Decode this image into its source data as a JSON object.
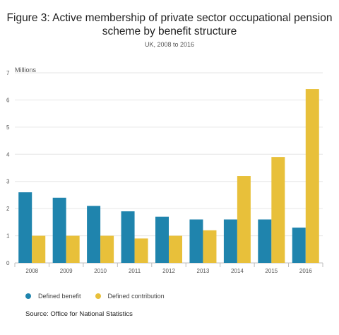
{
  "title_lines": [
    "Figure 3: Active membership of private sector occupational pension",
    "scheme by benefit structure"
  ],
  "subtitle": "UK, 2008 to 2016",
  "units_label": "Millions",
  "source": "Source: Office for National Statistics",
  "colors": {
    "defined_benefit": "#1f84ad",
    "defined_contribution": "#e8c03a"
  },
  "chart_data": {
    "type": "bar",
    "title": "Figure 3: Active membership of private sector occupational pension scheme by benefit structure",
    "subtitle": "UK, 2008 to 2016",
    "ylabel": "Millions",
    "xlabel": "",
    "ylim": [
      0,
      7
    ],
    "yticks": [
      0,
      1,
      2,
      3,
      4,
      5,
      6,
      7
    ],
    "categories": [
      "2008",
      "2009",
      "2010",
      "2011",
      "2012",
      "2013",
      "2014",
      "2015",
      "2016"
    ],
    "series": [
      {
        "name": "Defined benefit",
        "values": [
          2.6,
          2.4,
          2.1,
          1.9,
          1.7,
          1.6,
          1.6,
          1.6,
          1.3
        ]
      },
      {
        "name": "Defined contribution",
        "values": [
          1.0,
          1.0,
          1.0,
          0.9,
          1.0,
          1.2,
          3.2,
          3.9,
          6.4
        ]
      }
    ],
    "grid": true,
    "legend": "bottom-left"
  }
}
